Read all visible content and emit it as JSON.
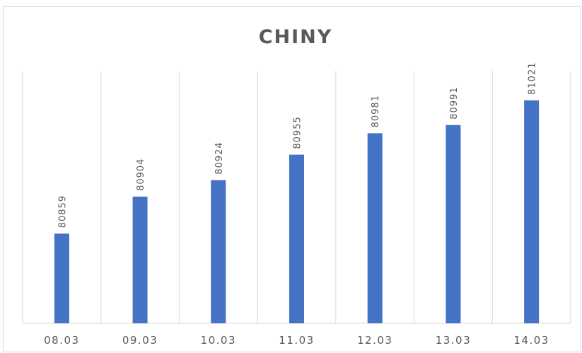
{
  "chart_data": {
    "type": "bar",
    "title": "CHINY",
    "categories": [
      "08.03",
      "09.03",
      "10.03",
      "11.03",
      "12.03",
      "13.03",
      "14.03"
    ],
    "values": [
      80859,
      80904,
      80924,
      80955,
      80981,
      80991,
      81021
    ],
    "ylim": [
      80750,
      81057
    ],
    "grid": "vertical",
    "colors": {
      "bar": "#4472c4",
      "grid": "#d9d9d9",
      "text": "#595959"
    }
  }
}
